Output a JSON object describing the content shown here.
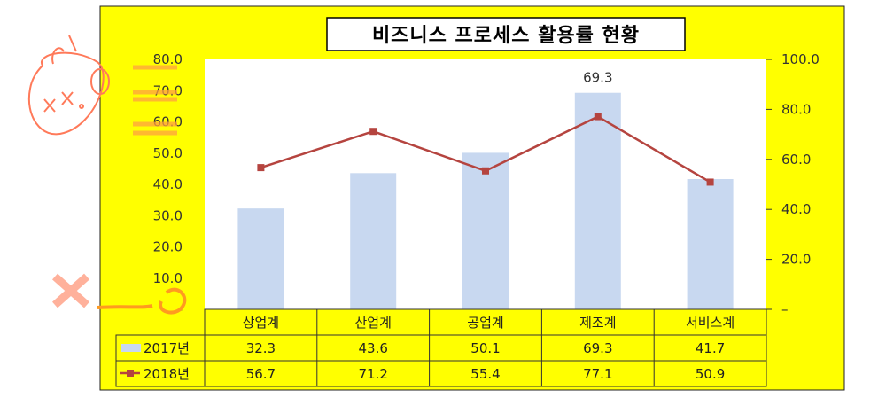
{
  "chart_data": {
    "type": "bar",
    "title": "비즈니스 프로세스 활용률 현황",
    "categories": [
      "상업계",
      "산업계",
      "공업계",
      "제조계",
      "서비스계"
    ],
    "series": [
      {
        "name": "2017년",
        "type": "bar",
        "axis": "left",
        "values": [
          32.3,
          43.6,
          50.1,
          69.3,
          41.7
        ],
        "value_labels": [
          "32.3",
          "43.6",
          "50.1",
          "69.3",
          "41.7"
        ]
      },
      {
        "name": "2018년",
        "type": "line",
        "axis": "right",
        "values": [
          56.7,
          71.2,
          55.4,
          77.1,
          50.9
        ],
        "value_labels": [
          "56.7",
          "71.2",
          "55.4",
          "77.1",
          "50.9"
        ]
      }
    ],
    "y_left": {
      "range": [
        0,
        80
      ],
      "ticks": [
        "–",
        "10.0",
        "20.0",
        "30.0",
        "40.0",
        "50.0",
        "60.0",
        "70.0",
        "80.0"
      ]
    },
    "y_right": {
      "range": [
        0,
        100
      ],
      "ticks": [
        "–",
        "20.0",
        "40.0",
        "60.0",
        "80.0",
        "100.0"
      ]
    },
    "annotation": "69.3",
    "data_table": true,
    "colors": {
      "background": "#ffff00",
      "plot": "#ffffff",
      "bar": "#c8d8f0",
      "line": "#b5443f"
    },
    "doodles": {
      "top_left_scribble": "xx.0"
    }
  }
}
